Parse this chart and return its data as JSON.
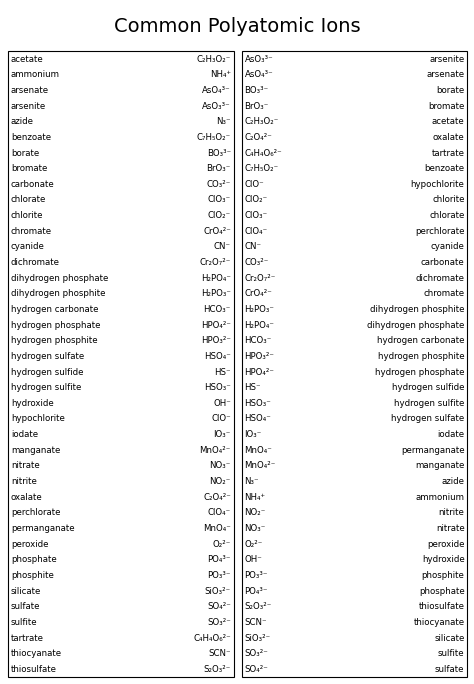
{
  "title": "Common Polyatomic Ions",
  "left_table": [
    [
      "acetate",
      "C₂H₃O₂⁻"
    ],
    [
      "ammonium",
      "NH₄⁺"
    ],
    [
      "arsenate",
      "AsO₄³⁻"
    ],
    [
      "arsenite",
      "AsO₃³⁻"
    ],
    [
      "azide",
      "N₃⁻"
    ],
    [
      "benzoate",
      "C₇H₅O₂⁻"
    ],
    [
      "borate",
      "BO₃³⁻"
    ],
    [
      "bromate",
      "BrO₃⁻"
    ],
    [
      "carbonate",
      "CO₃²⁻"
    ],
    [
      "chlorate",
      "ClO₃⁻"
    ],
    [
      "chlorite",
      "ClO₂⁻"
    ],
    [
      "chromate",
      "CrO₄²⁻"
    ],
    [
      "cyanide",
      "CN⁻"
    ],
    [
      "dichromate",
      "Cr₂O₇²⁻"
    ],
    [
      "dihydrogen phosphate",
      "H₂PO₄⁻"
    ],
    [
      "dihydrogen phosphite",
      "H₂PO₃⁻"
    ],
    [
      "hydrogen carbonate",
      "HCO₃⁻"
    ],
    [
      "hydrogen phosphate",
      "HPO₄²⁻"
    ],
    [
      "hydrogen phosphite",
      "HPO₃²⁻"
    ],
    [
      "hydrogen sulfate",
      "HSO₄⁻"
    ],
    [
      "hydrogen sulfide",
      "HS⁻"
    ],
    [
      "hydrogen sulfite",
      "HSO₃⁻"
    ],
    [
      "hydroxide",
      "OH⁻"
    ],
    [
      "hypochlorite",
      "ClO⁻"
    ],
    [
      "iodate",
      "IO₃⁻"
    ],
    [
      "manganate",
      "MnO₄²⁻"
    ],
    [
      "nitrate",
      "NO₃⁻"
    ],
    [
      "nitrite",
      "NO₂⁻"
    ],
    [
      "oxalate",
      "C₂O₄²⁻"
    ],
    [
      "perchlorate",
      "ClO₄⁻"
    ],
    [
      "permanganate",
      "MnO₄⁻"
    ],
    [
      "peroxide",
      "O₂²⁻"
    ],
    [
      "phosphate",
      "PO₄³⁻"
    ],
    [
      "phosphite",
      "PO₃³⁻"
    ],
    [
      "silicate",
      "SiO₃²⁻"
    ],
    [
      "sulfate",
      "SO₄²⁻"
    ],
    [
      "sulfite",
      "SO₃²⁻"
    ],
    [
      "tartrate",
      "C₄H₄O₆²⁻"
    ],
    [
      "thiocyanate",
      "SCN⁻"
    ],
    [
      "thiosulfate",
      "S₂O₃²⁻"
    ]
  ],
  "right_table": [
    [
      "AsO₃³⁻",
      "arsenite"
    ],
    [
      "AsO₄³⁻",
      "arsenate"
    ],
    [
      "BO₃³⁻",
      "borate"
    ],
    [
      "BrO₃⁻",
      "bromate"
    ],
    [
      "C₂H₃O₂⁻",
      "acetate"
    ],
    [
      "C₂O₄²⁻",
      "oxalate"
    ],
    [
      "C₄H₄O₆²⁻",
      "tartrate"
    ],
    [
      "C₇H₅O₂⁻",
      "benzoate"
    ],
    [
      "ClO⁻",
      "hypochlorite"
    ],
    [
      "ClO₂⁻",
      "chlorite"
    ],
    [
      "ClO₃⁻",
      "chlorate"
    ],
    [
      "ClO₄⁻",
      "perchlorate"
    ],
    [
      "CN⁻",
      "cyanide"
    ],
    [
      "CO₃²⁻",
      "carbonate"
    ],
    [
      "Cr₂O₇²⁻",
      "dichromate"
    ],
    [
      "CrO₄²⁻",
      "chromate"
    ],
    [
      "H₂PO₃⁻",
      "dihydrogen phosphite"
    ],
    [
      "H₂PO₄⁻",
      "dihydrogen phosphate"
    ],
    [
      "HCO₃⁻",
      "hydrogen carbonate"
    ],
    [
      "HPO₃²⁻",
      "hydrogen phosphite"
    ],
    [
      "HPO₄²⁻",
      "hydrogen phosphate"
    ],
    [
      "HS⁻",
      "hydrogen sulfide"
    ],
    [
      "HSO₃⁻",
      "hydrogen sulfite"
    ],
    [
      "HSO₄⁻",
      "hydrogen sulfate"
    ],
    [
      "IO₃⁻",
      "iodate"
    ],
    [
      "MnO₄⁻",
      "permanganate"
    ],
    [
      "MnO₄²⁻",
      "manganate"
    ],
    [
      "N₃⁻",
      "azide"
    ],
    [
      "NH₄⁺",
      "ammonium"
    ],
    [
      "NO₂⁻",
      "nitrite"
    ],
    [
      "NO₃⁻",
      "nitrate"
    ],
    [
      "O₂²⁻",
      "peroxide"
    ],
    [
      "OH⁻",
      "hydroxide"
    ],
    [
      "PO₃³⁻",
      "phosphite"
    ],
    [
      "PO₄³⁻",
      "phosphate"
    ],
    [
      "S₂O₃²⁻",
      "thiosulfate"
    ],
    [
      "SCN⁻",
      "thiocyanate"
    ],
    [
      "SiO₃²⁻",
      "silicate"
    ],
    [
      "SO₃²⁻",
      "sulfite"
    ],
    [
      "SO₄²⁻",
      "sulfate"
    ]
  ],
  "bg_color": "#ffffff",
  "text_color": "#000000",
  "border_color": "#000000",
  "font_size": 6.2,
  "title_font_size": 14,
  "fig_width": 4.74,
  "fig_height": 6.84,
  "dpi": 100
}
